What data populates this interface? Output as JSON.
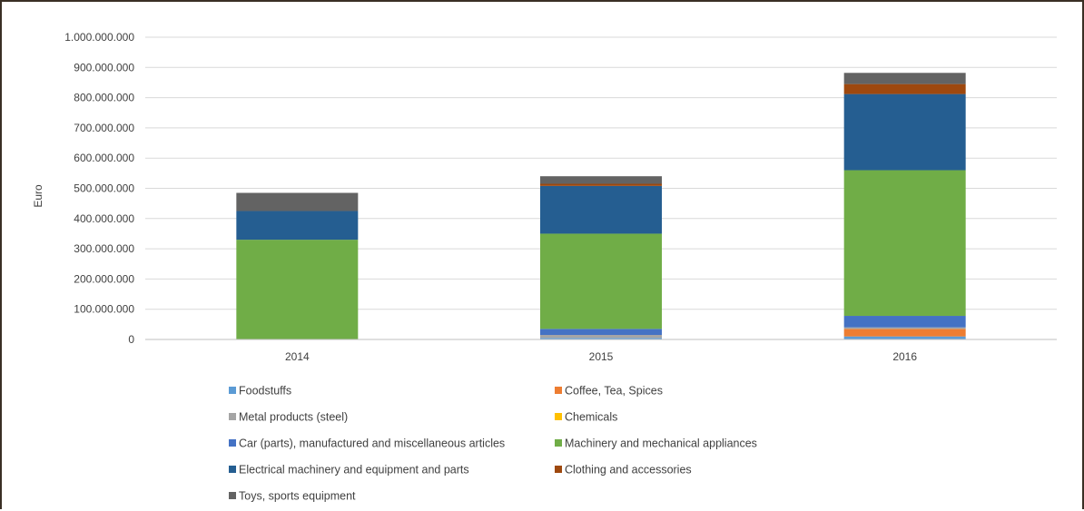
{
  "chart_data": {
    "type": "bar",
    "stacked": true,
    "title": "",
    "xlabel": "",
    "ylabel": "Euro",
    "ylim": [
      0,
      1000000000
    ],
    "yticks": [
      "0",
      "100.000.000",
      "200.000.000",
      "300.000.000",
      "400.000.000",
      "500.000.000",
      "600.000.000",
      "700.000.000",
      "800.000.000",
      "900.000.000",
      "1.000.000.000"
    ],
    "grid": true,
    "legend_position": "bottom",
    "categories": [
      "2014",
      "2015",
      "2016"
    ],
    "series": [
      {
        "name": "Foodstuffs",
        "color": "#5b9bd5",
        "values": [
          0,
          5000000,
          10000000
        ]
      },
      {
        "name": "Coffee, Tea, Spices",
        "color": "#ed7d31",
        "values": [
          0,
          0,
          25000000
        ]
      },
      {
        "name": "Metal products (steel)",
        "color": "#a5a5a5",
        "values": [
          0,
          10000000,
          5000000
        ]
      },
      {
        "name": "Chemicals",
        "color": "#ffc000",
        "values": [
          0,
          0,
          0
        ]
      },
      {
        "name": "Car (parts), manufactured and miscellaneous articles",
        "color": "#4472c4",
        "values": [
          0,
          20000000,
          38000000
        ]
      },
      {
        "name": "Machinery and mechanical appliances",
        "color": "#70ad47",
        "values": [
          330000000,
          315000000,
          482000000
        ]
      },
      {
        "name": "Electrical machinery and equipment and parts",
        "color": "#255e91",
        "values": [
          95000000,
          158000000,
          252000000
        ]
      },
      {
        "name": "Clothing and accessories",
        "color": "#9e480e",
        "values": [
          0,
          7000000,
          33000000
        ]
      },
      {
        "name": "Toys, sports equipment",
        "color": "#636363",
        "values": [
          60000000,
          25000000,
          37000000
        ]
      }
    ]
  }
}
